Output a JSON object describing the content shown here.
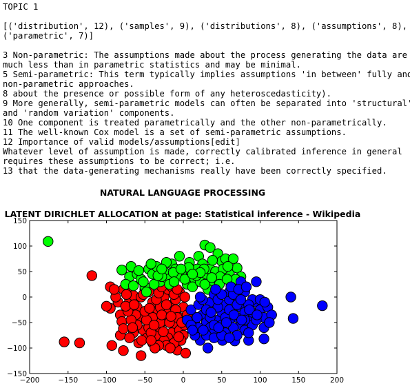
{
  "topic_label": "TOPIC 1",
  "word_list_lines": [
    "[('distribution', 12), ('samples', 9), ('distributions', 8), ('assumptions', 8),",
    "('parametric', 7)]"
  ],
  "sentence_lines": [
    "3 Non-parametric: The assumptions made about the process generating the data are",
    "much less than in parametric statistics and may be minimal.",
    "5 Semi-parametric: This term typically implies assumptions 'in between' fully and",
    "non-parametric approaches.",
    "8 about the presence or possible form of any heteroscedasticity).",
    "9 More generally, semi-parametric models can often be separated into 'structural'",
    "and 'random variation' components.",
    "10 One component is treated parametrically and the other non-parametrically.",
    "11 The well-known Cox model is a set of semi-parametric assumptions.",
    "12 Importance of valid models/assumptions[edit]",
    "Whatever level of assumption is made, correctly calibrated inference in general",
    "requires these assumptions to be correct; i.e.",
    "13 that the data-generating mechanisms really have been correctly specified."
  ],
  "nlp_heading": "NATURAL LANGUAGE PROCESSING",
  "chart_data": {
    "type": "scatter",
    "title": "LATENT DIRICHLET ALLOCATION at page:  Statistical inference - Wikipedia",
    "xlabel": "",
    "ylabel": "",
    "xlim": [
      -200,
      200
    ],
    "ylim": [
      -150,
      150
    ],
    "xticks": [
      -200,
      -150,
      -100,
      -50,
      0,
      50,
      100,
      150,
      200
    ],
    "yticks": [
      -150,
      -100,
      -50,
      0,
      50,
      100,
      150
    ],
    "grid": false,
    "series": [
      {
        "color": "#ff0000",
        "points": [
          [
            -119,
            42
          ],
          [
            -155,
            -88
          ],
          [
            -135,
            -90
          ],
          [
            -78,
            -105
          ],
          [
            -55,
            -115
          ],
          [
            -93,
            -95
          ],
          [
            -8,
            -104
          ],
          [
            3,
            -110
          ],
          [
            -82,
            -75
          ],
          [
            -95,
            -22
          ],
          [
            -100,
            -18
          ],
          [
            -95,
            20
          ],
          [
            -78,
            15
          ],
          [
            -70,
            12
          ],
          [
            -85,
            -10
          ],
          [
            -82,
            -35
          ],
          [
            -80,
            -48
          ],
          [
            -78,
            -62
          ],
          [
            -70,
            -5
          ],
          [
            -65,
            3
          ],
          [
            -60,
            -20
          ],
          [
            -55,
            -38
          ],
          [
            -52,
            -65
          ],
          [
            -47,
            -80
          ],
          [
            -40,
            -90
          ],
          [
            -35,
            -75
          ],
          [
            -30,
            -60
          ],
          [
            -25,
            -45
          ],
          [
            -20,
            -30
          ],
          [
            -15,
            -15
          ],
          [
            -10,
            -5
          ],
          [
            -5,
            10
          ],
          [
            0,
            -20
          ],
          [
            -5,
            -40
          ],
          [
            -10,
            -55
          ],
          [
            -15,
            -70
          ],
          [
            -20,
            -80
          ],
          [
            -25,
            -85
          ],
          [
            -30,
            -50
          ],
          [
            -35,
            -30
          ],
          [
            -40,
            -10
          ],
          [
            -45,
            10
          ],
          [
            -50,
            15
          ],
          [
            -55,
            0
          ],
          [
            -60,
            -55
          ],
          [
            -65,
            -70
          ],
          [
            -70,
            -80
          ],
          [
            -45,
            -60
          ],
          [
            -40,
            -40
          ],
          [
            -30,
            -20
          ],
          [
            -25,
            0
          ],
          [
            -20,
            15
          ],
          [
            -15,
            20
          ],
          [
            -10,
            -25
          ],
          [
            -5,
            -65
          ],
          [
            0,
            -75
          ],
          [
            2,
            -55
          ],
          [
            5,
            -35
          ],
          [
            2,
            0
          ],
          [
            -3,
            -85
          ],
          [
            -12,
            -90
          ],
          [
            -22,
            -95
          ],
          [
            -32,
            -95
          ],
          [
            -42,
            -70
          ],
          [
            -48,
            -45
          ],
          [
            -38,
            -55
          ],
          [
            -28,
            -35
          ],
          [
            -18,
            -50
          ],
          [
            -8,
            -40
          ],
          [
            -2,
            -50
          ],
          [
            -58,
            -90
          ],
          [
            -62,
            -35
          ],
          [
            -68,
            -45
          ],
          [
            -72,
            -28
          ],
          [
            -75,
            -18
          ],
          [
            -66,
            -60
          ],
          [
            -50,
            -28
          ],
          [
            -35,
            -5
          ],
          [
            -22,
            -15
          ],
          [
            -12,
            5
          ],
          [
            -44,
            -22
          ],
          [
            -32,
            8
          ],
          [
            -26,
            -68
          ],
          [
            -16,
            -38
          ],
          [
            -6,
            -78
          ],
          [
            -54,
            -85
          ],
          [
            -64,
            -15
          ],
          [
            -74,
            5
          ],
          [
            -88,
            0
          ],
          [
            -90,
            15
          ],
          [
            -17,
            -100
          ],
          [
            -37,
            -100
          ],
          [
            -28,
            20
          ],
          [
            -52,
            5
          ],
          [
            -42,
            -85
          ],
          [
            -8,
            15
          ]
        ]
      },
      {
        "color": "#00ff00",
        "points": [
          [
            -176,
            109
          ],
          [
            28,
            102
          ],
          [
            35,
            97
          ],
          [
            -80,
            53
          ],
          [
            -70,
            40
          ],
          [
            -75,
            25
          ],
          [
            -68,
            60
          ],
          [
            -60,
            45
          ],
          [
            -55,
            35
          ],
          [
            -50,
            20
          ],
          [
            -45,
            55
          ],
          [
            -40,
            45
          ],
          [
            -35,
            60
          ],
          [
            -30,
            30
          ],
          [
            -25,
            50
          ],
          [
            -20,
            35
          ],
          [
            -15,
            65
          ],
          [
            -10,
            55
          ],
          [
            -5,
            80
          ],
          [
            0,
            45
          ],
          [
            5,
            25
          ],
          [
            10,
            50
          ],
          [
            15,
            35
          ],
          [
            20,
            80
          ],
          [
            25,
            65
          ],
          [
            30,
            45
          ],
          [
            35,
            55
          ],
          [
            40,
            30
          ],
          [
            45,
            85
          ],
          [
            50,
            70
          ],
          [
            55,
            75
          ],
          [
            60,
            45
          ],
          [
            65,
            75
          ],
          [
            70,
            57
          ],
          [
            75,
            40
          ],
          [
            -65,
            22
          ],
          [
            -48,
            10
          ],
          [
            -38,
            25
          ],
          [
            -28,
            40
          ],
          [
            -18,
            25
          ],
          [
            -8,
            40
          ],
          [
            2,
            35
          ],
          [
            12,
            20
          ],
          [
            22,
            30
          ],
          [
            32,
            15
          ],
          [
            42,
            50
          ],
          [
            52,
            55
          ],
          [
            62,
            25
          ],
          [
            -42,
            65
          ],
          [
            -22,
            68
          ],
          [
            8,
            68
          ],
          [
            18,
            55
          ],
          [
            28,
            25
          ],
          [
            38,
            72
          ],
          [
            48,
            40
          ],
          [
            58,
            60
          ],
          [
            68,
            35
          ],
          [
            -58,
            52
          ],
          [
            -33,
            42
          ],
          [
            -13,
            48
          ],
          [
            7,
            58
          ],
          [
            17,
            42
          ],
          [
            27,
            55
          ],
          [
            37,
            38
          ],
          [
            47,
            25
          ],
          [
            57,
            35
          ],
          [
            -52,
            30
          ],
          [
            -28,
            55
          ],
          [
            -3,
            55
          ],
          [
            22,
            48
          ],
          [
            -12,
            30
          ],
          [
            12,
            45
          ]
        ]
      },
      {
        "color": "#0000ff",
        "points": [
          [
            140,
            0
          ],
          [
            181,
            -17
          ],
          [
            143,
            -42
          ],
          [
            105,
            -82
          ],
          [
            85,
            -85
          ],
          [
            67,
            -86
          ],
          [
            51,
            -85
          ],
          [
            32,
            -100
          ],
          [
            22,
            -85
          ],
          [
            15,
            -75
          ],
          [
            10,
            -25
          ],
          [
            20,
            -15
          ],
          [
            25,
            -35
          ],
          [
            30,
            -50
          ],
          [
            35,
            -60
          ],
          [
            40,
            -70
          ],
          [
            45,
            -45
          ],
          [
            50,
            -30
          ],
          [
            55,
            -15
          ],
          [
            60,
            -5
          ],
          [
            65,
            -25
          ],
          [
            70,
            -40
          ],
          [
            75,
            -55
          ],
          [
            80,
            -65
          ],
          [
            85,
            -45
          ],
          [
            90,
            -30
          ],
          [
            95,
            -10
          ],
          [
            100,
            -25
          ],
          [
            105,
            -40
          ],
          [
            110,
            -20
          ],
          [
            115,
            -35
          ],
          [
            75,
            30
          ],
          [
            95,
            30
          ],
          [
            60,
            10
          ],
          [
            70,
            0
          ],
          [
            80,
            10
          ],
          [
            90,
            -5
          ],
          [
            35,
            -10
          ],
          [
            40,
            5
          ],
          [
            45,
            -20
          ],
          [
            50,
            -55
          ],
          [
            55,
            -70
          ],
          [
            60,
            -45
          ],
          [
            65,
            -60
          ],
          [
            70,
            -75
          ],
          [
            75,
            -20
          ],
          [
            80,
            -30
          ],
          [
            85,
            -15
          ],
          [
            90,
            -55
          ],
          [
            95,
            -45
          ],
          [
            100,
            -5
          ],
          [
            105,
            -60
          ],
          [
            15,
            -50
          ],
          [
            20,
            -60
          ],
          [
            25,
            -5
          ],
          [
            30,
            -25
          ],
          [
            35,
            -40
          ],
          [
            40,
            -55
          ],
          [
            45,
            -5
          ],
          [
            50,
            5
          ],
          [
            55,
            -40
          ],
          [
            60,
            -25
          ],
          [
            65,
            5
          ],
          [
            70,
            -15
          ],
          [
            75,
            -5
          ],
          [
            80,
            -45
          ],
          [
            85,
            -70
          ],
          [
            30,
            -75
          ],
          [
            40,
            -80
          ],
          [
            50,
            -75
          ],
          [
            60,
            -80
          ],
          [
            5,
            -45
          ],
          [
            10,
            -55
          ],
          [
            12,
            -65
          ],
          [
            18,
            -40
          ],
          [
            26,
            -65
          ],
          [
            36,
            -30
          ],
          [
            46,
            -60
          ],
          [
            56,
            -50
          ],
          [
            66,
            -35
          ],
          [
            76,
            -45
          ],
          [
            86,
            -25
          ],
          [
            96,
            -35
          ],
          [
            106,
            -10
          ],
          [
            112,
            -50
          ],
          [
            62,
            20
          ],
          [
            72,
            15
          ],
          [
            82,
            20
          ],
          [
            22,
            0
          ],
          [
            42,
            15
          ]
        ]
      }
    ]
  }
}
